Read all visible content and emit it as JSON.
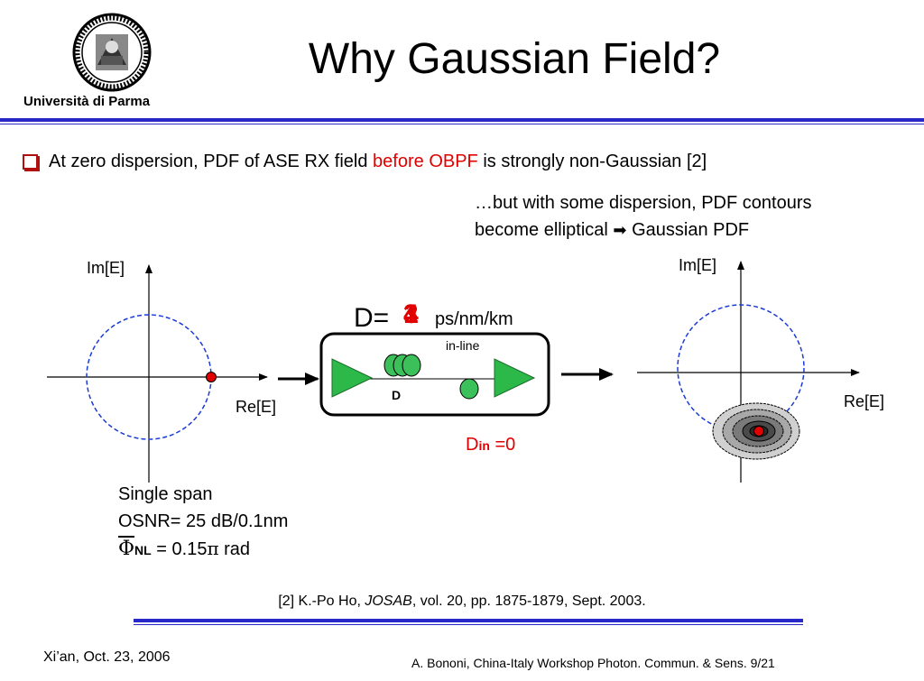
{
  "header": {
    "title": "Why Gaussian Field?",
    "university": "Università di Parma"
  },
  "bullet": {
    "text_before": "At zero dispersion, PDF of ASE RX field ",
    "text_red": "before OBPF",
    "text_after": " is strongly non-Gaussian [2]"
  },
  "note": {
    "line1": "…but with some dispersion, PDF contours",
    "line2_before": "become elliptical ",
    "arrow": "➡",
    "line2_after": " Gaussian PDF"
  },
  "left_plot": {
    "y_label": "Im[E]",
    "x_label": "Re[E]"
  },
  "right_plot": {
    "y_label": "Im[E]",
    "x_label": "Re[E]"
  },
  "link": {
    "d_prefix": "D=",
    "d_values": [
      "3",
      "1",
      "4"
    ],
    "d_unit": "ps/nm/km",
    "inline_label": "in-line",
    "fiber_label": "D",
    "din_main": "D",
    "din_sub": "in",
    "din_value": " =0"
  },
  "params": {
    "line1": "Single span",
    "line2": "OSNR= 25 dB/0.1nm",
    "phi": "Φ",
    "phi_sub": "NL",
    "phi_value": " = 0.15",
    "pi": "π",
    "unit": " rad"
  },
  "reference": {
    "prefix": "[2] K.-Po Ho, ",
    "journal": "JOSAB",
    "suffix": ", vol. 20, pp. 1875-1879, Sept. 2003."
  },
  "footer": {
    "left": "Xi’an, Oct. 23, 2006",
    "right": "A. Bononi, China-Italy Workshop Photon. Commun. &  Sens.  9/21"
  },
  "colors": {
    "accent_blue": "#2828c8",
    "red": "#e00000",
    "amp_green": "#2db84a",
    "fiber_green": "#3cc05a",
    "circle_blue": "#1a3bd6"
  }
}
